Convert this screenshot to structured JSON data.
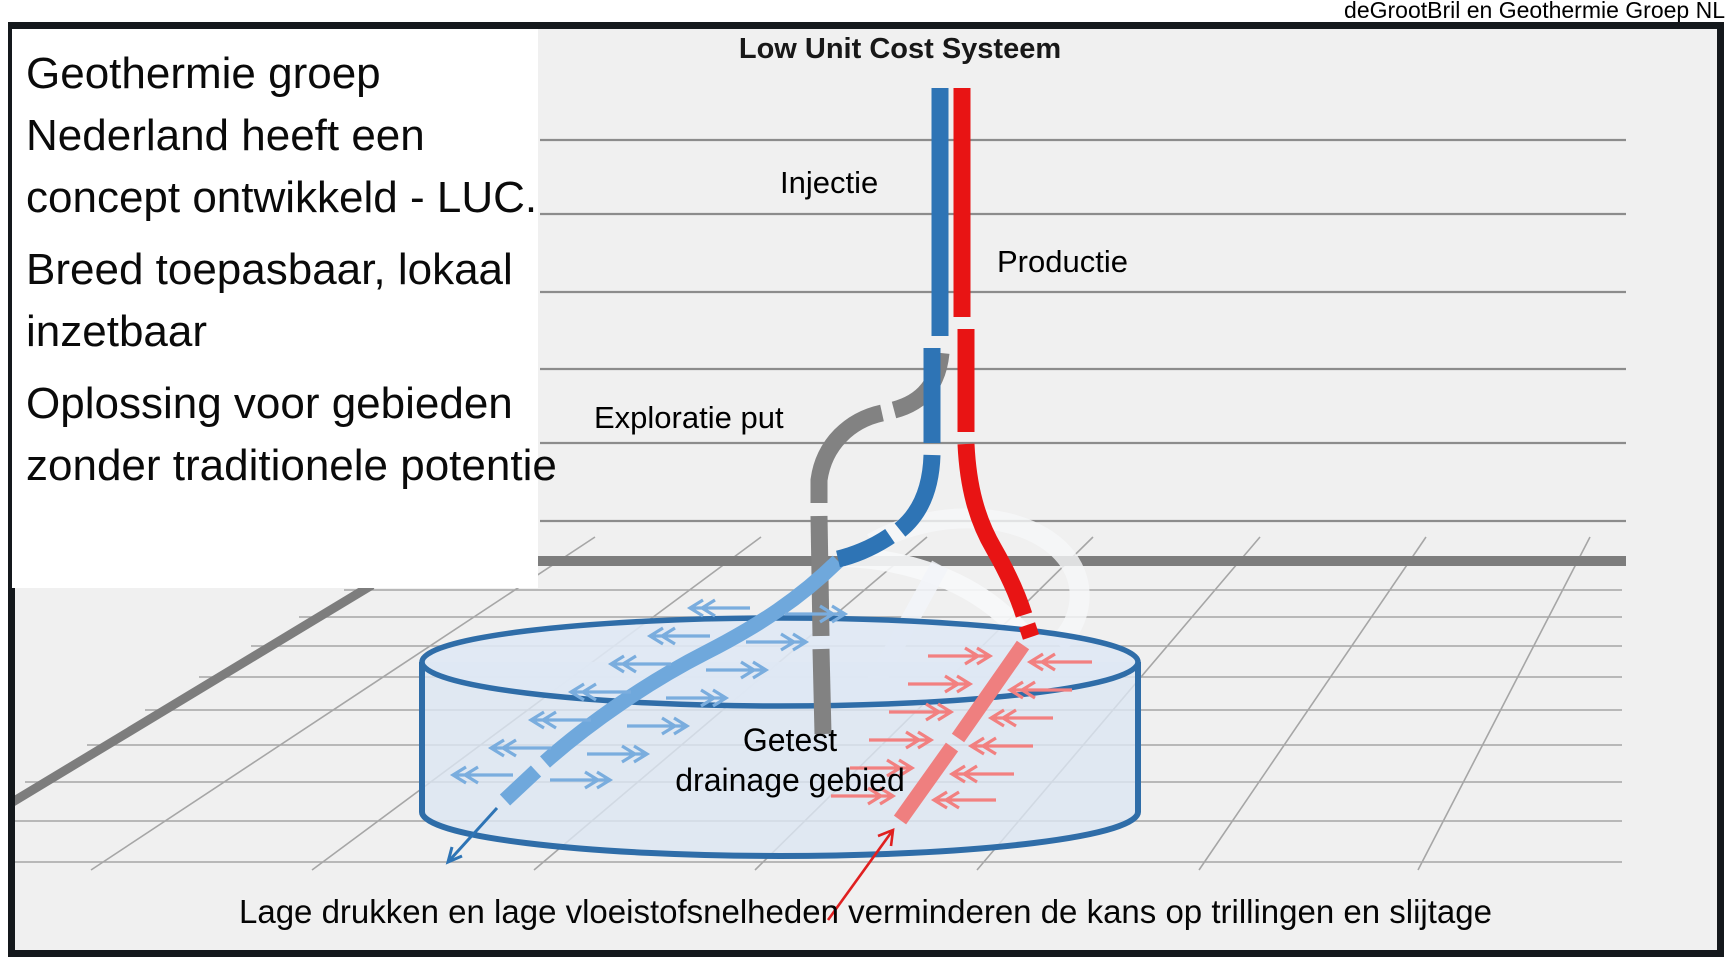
{
  "credit": "deGrootBril en Geothermie Groep NL",
  "panel": {
    "lines": [
      "Geothermie groep",
      "Nederland heeft een",
      "concept ontwikkeld - LUC.",
      "Breed toepasbaar, lokaal",
      "inzetbaar",
      "Oplossing voor gebieden",
      "zonder traditionele potentie"
    ]
  },
  "diagram": {
    "title": "Low Unit Cost Systeem",
    "labels": {
      "injection": "Injectie",
      "production": "Productie",
      "exploration": "Exploratie put",
      "drainage_line1": "Getest",
      "drainage_line2": "drainage gebied"
    },
    "caption": "Lage drukken en lage vloeistofsnelheden verminderen de kans op trillingen en slijtage"
  },
  "colors": {
    "background": "#f0f0f0",
    "injection_blue": "#2e74b5",
    "production_red": "#e81414",
    "exploration_gray": "#828282",
    "lateral_light_blue": "#6fa8dc",
    "lateral_pink": "#ef7f7f",
    "arrow_blue": "#7aadde",
    "arrow_pink": "#f28080",
    "cylinder_stroke": "#2f6da8",
    "cylinder_fill": "#dce6f2",
    "grid_gray": "#8c8c8c",
    "ground_gray": "#7d7d7d"
  }
}
